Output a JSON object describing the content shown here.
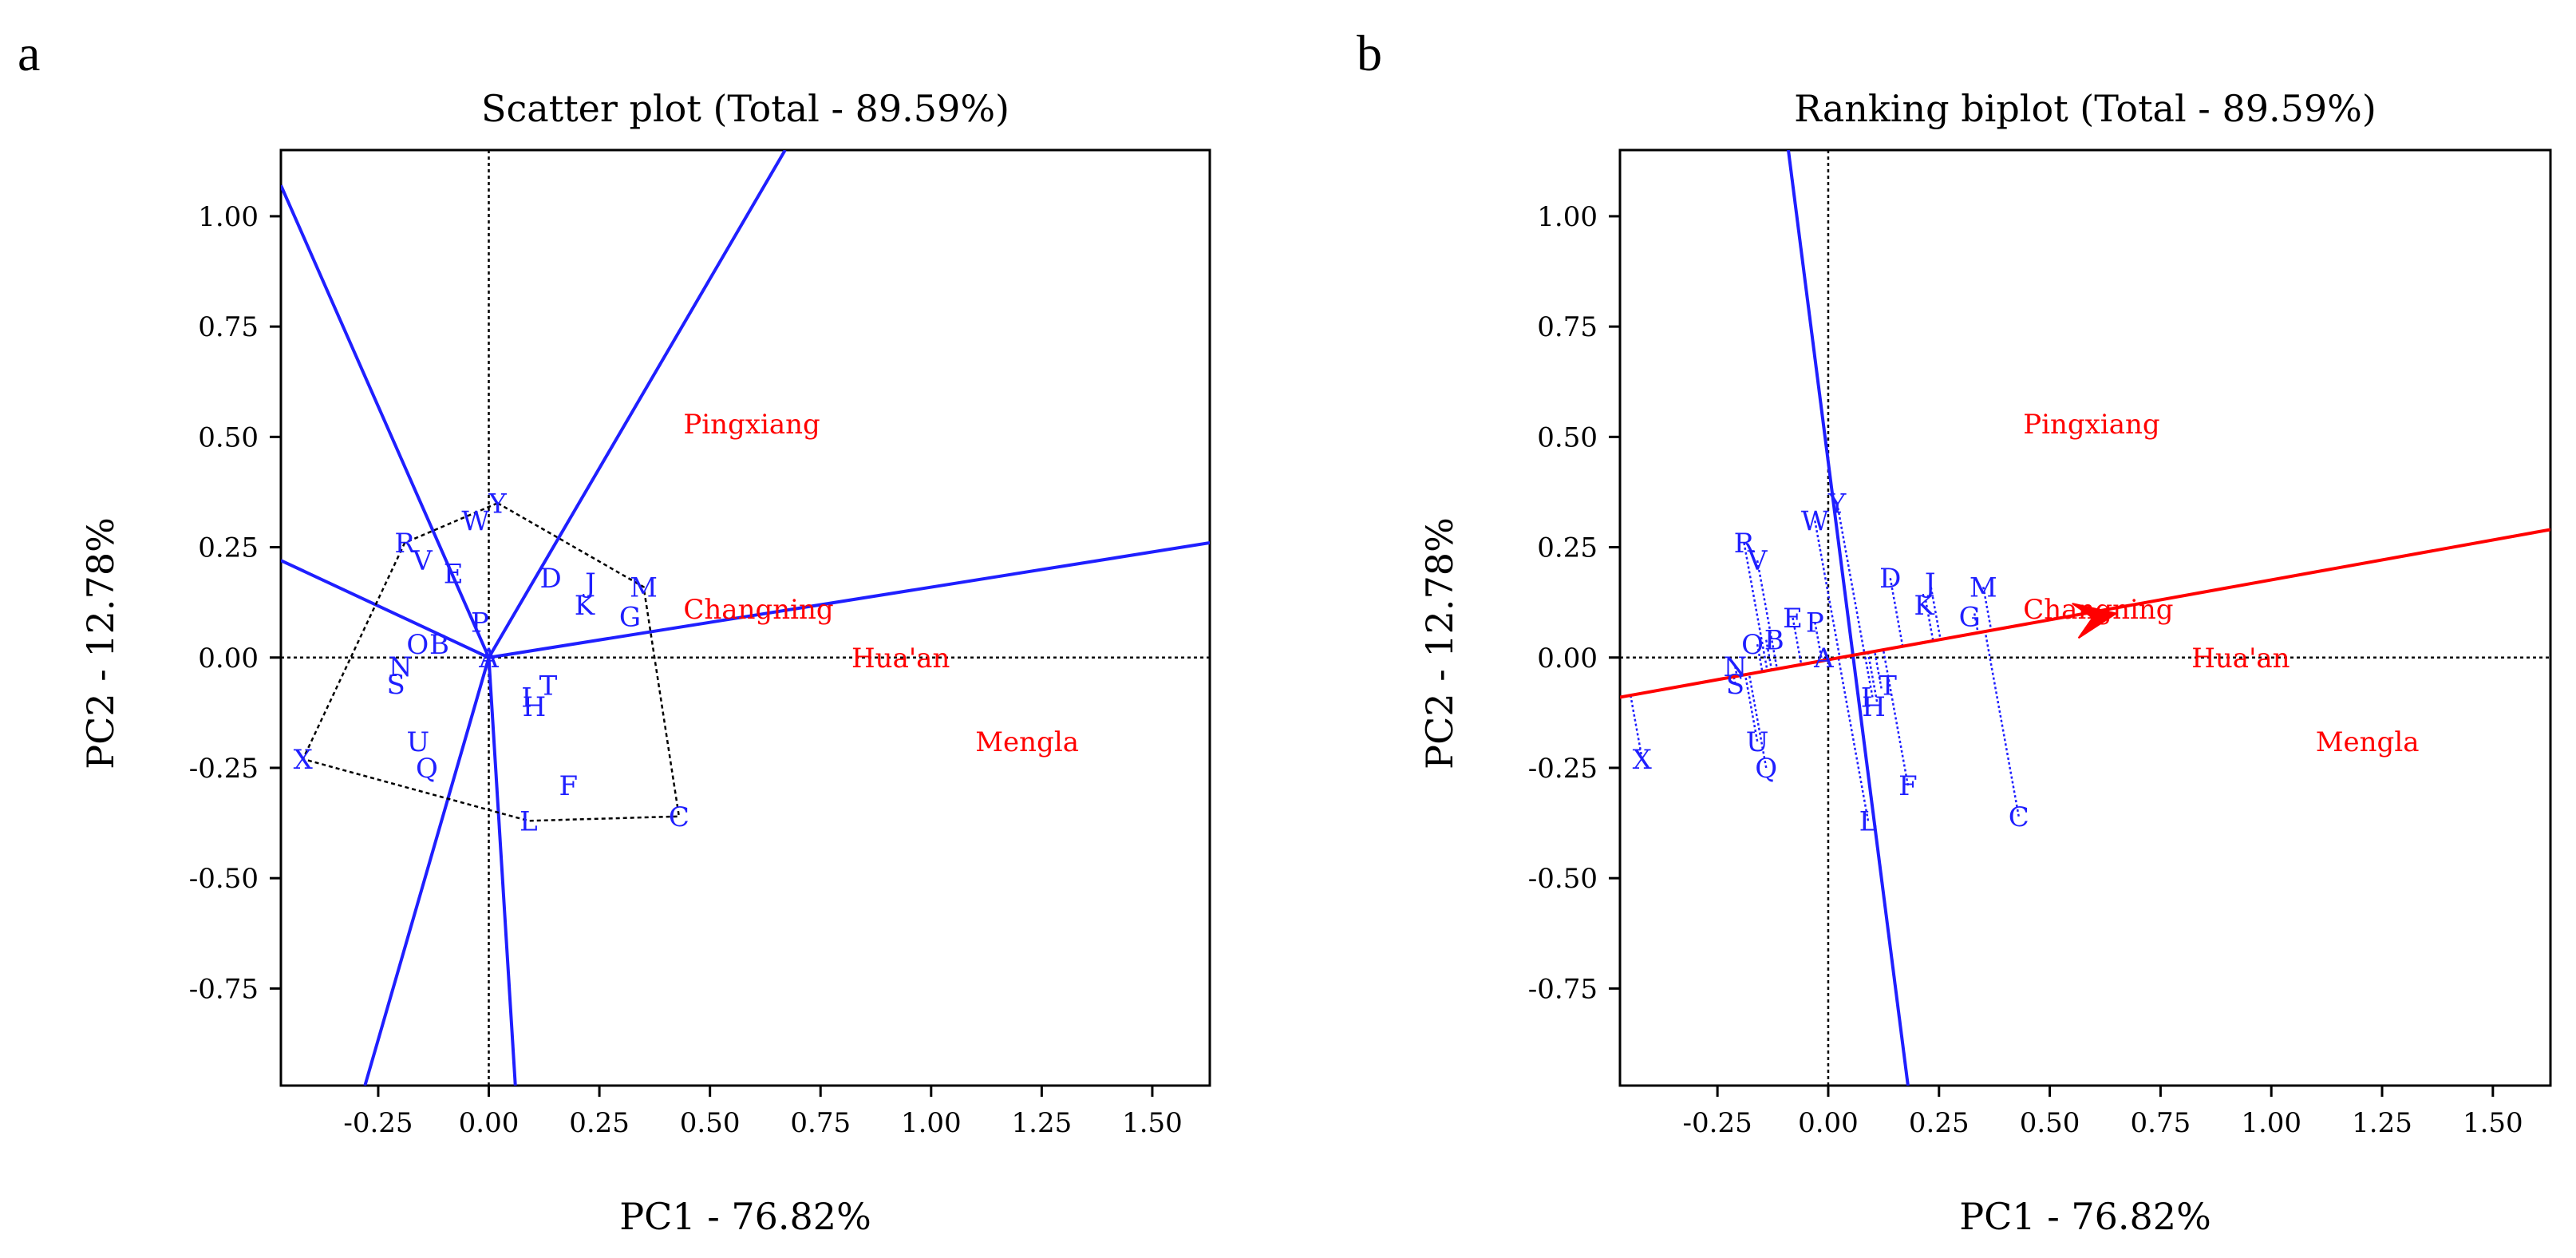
{
  "chart_data": [
    {
      "panel": "a",
      "type": "scatter",
      "title": "Scatter plot (Total - 89.59%)",
      "xlabel": "PC1 - 76.82%",
      "ylabel": "PC2 - 12.78%",
      "xlim": [
        -0.47,
        1.63
      ],
      "ylim": [
        -0.97,
        1.15
      ],
      "xticks": [
        -0.25,
        0.0,
        0.25,
        0.5,
        0.75,
        1.0,
        1.25,
        1.5
      ],
      "xtick_labels": [
        "-0.25",
        "0.00",
        "0.25",
        "0.50",
        "0.75",
        "1.00",
        "1.25",
        "1.50"
      ],
      "yticks": [
        1.0,
        0.75,
        0.5,
        0.25,
        0.0,
        -0.25,
        -0.5,
        -0.75
      ],
      "ytick_labels": [
        "1.00",
        "0.75",
        "0.50",
        "0.25",
        "0.00",
        "-0.25",
        "-0.50",
        "-0.75"
      ],
      "genotypes": [
        {
          "label": "Y",
          "x": 0.02,
          "y": 0.35
        },
        {
          "label": "W",
          "x": -0.03,
          "y": 0.31
        },
        {
          "label": "R",
          "x": -0.19,
          "y": 0.26
        },
        {
          "label": "V",
          "x": -0.15,
          "y": 0.22
        },
        {
          "label": "D",
          "x": 0.14,
          "y": 0.18
        },
        {
          "label": "J",
          "x": 0.23,
          "y": 0.17
        },
        {
          "label": "K",
          "x": 0.22,
          "y": 0.13
        },
        {
          "label": "M",
          "x": 0.35,
          "y": 0.16
        },
        {
          "label": "G",
          "x": 0.33,
          "y": 0.1
        },
        {
          "label": "E",
          "x": -0.08,
          "y": 0.19
        },
        {
          "label": "P",
          "x": -0.02,
          "y": 0.08
        },
        {
          "label": "O",
          "x": -0.15,
          "y": 0.03
        },
        {
          "label": "B",
          "x": -0.13,
          "y": 0.03
        },
        {
          "label": "N",
          "x": -0.2,
          "y": -0.02
        },
        {
          "label": "S",
          "x": -0.21,
          "y": -0.06
        },
        {
          "label": "A",
          "x": 0.0,
          "y": 0.0
        },
        {
          "label": "T",
          "x": 0.12,
          "y": -0.07
        },
        {
          "label": "I",
          "x": 0.1,
          "y": -0.09
        },
        {
          "label": "H",
          "x": 0.11,
          "y": -0.1
        },
        {
          "label": "U",
          "x": -0.16,
          "y": -0.19
        },
        {
          "label": "Q",
          "x": -0.14,
          "y": -0.25
        },
        {
          "label": "X",
          "x": -0.42,
          "y": -0.23
        },
        {
          "label": "F",
          "x": 0.18,
          "y": -0.29
        },
        {
          "label": "L",
          "x": 0.09,
          "y": -0.37
        },
        {
          "label": "C",
          "x": 0.43,
          "y": -0.36
        }
      ],
      "environments": [
        {
          "label": "Pingxiang",
          "x": 0.44,
          "y": 0.53
        },
        {
          "label": "Changning",
          "x": 0.44,
          "y": 0.11
        },
        {
          "label": "Hua'an",
          "x": 0.82,
          "y": 0.0
        },
        {
          "label": "Mengla",
          "x": 1.1,
          "y": -0.19
        }
      ],
      "hull_vertices": [
        "Y",
        "M",
        "C",
        "L",
        "X",
        "R"
      ],
      "sector_rays": [
        {
          "from": [
            0,
            0
          ],
          "to": [
            0.67,
            1.15
          ]
        },
        {
          "from": [
            0,
            0
          ],
          "to": [
            1.63,
            0.26
          ]
        },
        {
          "from": [
            0,
            0
          ],
          "to": [
            0.06,
            -0.97
          ]
        },
        {
          "from": [
            0,
            0
          ],
          "to": [
            -0.28,
            -0.97
          ]
        },
        {
          "from": [
            0,
            0
          ],
          "to": [
            -0.47,
            0.22
          ]
        },
        {
          "from": [
            0,
            0
          ],
          "to": [
            -0.47,
            1.07
          ]
        }
      ]
    },
    {
      "panel": "b",
      "type": "scatter",
      "title": "Ranking biplot (Total - 89.59%)",
      "xlabel": "PC1 - 76.82%",
      "ylabel": "PC2 - 12.78%",
      "xlim": [
        -0.47,
        1.63
      ],
      "ylim": [
        -0.97,
        1.15
      ],
      "xticks": [
        -0.25,
        0.0,
        0.25,
        0.5,
        0.75,
        1.0,
        1.25,
        1.5
      ],
      "xtick_labels": [
        "-0.25",
        "0.00",
        "0.25",
        "0.50",
        "0.75",
        "1.00",
        "1.25",
        "1.50"
      ],
      "yticks": [
        1.0,
        0.75,
        0.5,
        0.25,
        0.0,
        -0.25,
        -0.5,
        -0.75
      ],
      "ytick_labels": [
        "1.00",
        "0.75",
        "0.50",
        "0.25",
        "0.00",
        "-0.25",
        "-0.50",
        "-0.75"
      ],
      "genotypes": [
        {
          "label": "Y",
          "x": 0.02,
          "y": 0.35
        },
        {
          "label": "W",
          "x": -0.03,
          "y": 0.31
        },
        {
          "label": "R",
          "x": -0.19,
          "y": 0.26
        },
        {
          "label": "V",
          "x": -0.16,
          "y": 0.22
        },
        {
          "label": "D",
          "x": 0.14,
          "y": 0.18
        },
        {
          "label": "J",
          "x": 0.23,
          "y": 0.17
        },
        {
          "label": "K",
          "x": 0.22,
          "y": 0.13
        },
        {
          "label": "M",
          "x": 0.35,
          "y": 0.16
        },
        {
          "label": "G",
          "x": 0.33,
          "y": 0.1
        },
        {
          "label": "E",
          "x": -0.08,
          "y": 0.09
        },
        {
          "label": "P",
          "x": -0.03,
          "y": 0.08
        },
        {
          "label": "B",
          "x": -0.14,
          "y": 0.04
        },
        {
          "label": "O",
          "x": -0.16,
          "y": 0.03
        },
        {
          "label": "A",
          "x": -0.01,
          "y": 0.0
        },
        {
          "label": "N",
          "x": -0.21,
          "y": -0.02
        },
        {
          "label": "S",
          "x": -0.21,
          "y": -0.06
        },
        {
          "label": "T",
          "x": 0.12,
          "y": -0.07
        },
        {
          "label": "I",
          "x": 0.1,
          "y": -0.09
        },
        {
          "label": "H",
          "x": 0.11,
          "y": -0.1
        },
        {
          "label": "U",
          "x": -0.16,
          "y": -0.19
        },
        {
          "label": "Q",
          "x": -0.14,
          "y": -0.25
        },
        {
          "label": "X",
          "x": -0.42,
          "y": -0.23
        },
        {
          "label": "F",
          "x": 0.18,
          "y": -0.29
        },
        {
          "label": "L",
          "x": 0.09,
          "y": -0.37
        },
        {
          "label": "C",
          "x": 0.43,
          "y": -0.36
        }
      ],
      "environments": [
        {
          "label": "Pingxiang",
          "x": 0.44,
          "y": 0.53
        },
        {
          "label": "Changning",
          "x": 0.44,
          "y": 0.11
        },
        {
          "label": "Hua'an",
          "x": 0.82,
          "y": 0.0
        },
        {
          "label": "Mengla",
          "x": 1.1,
          "y": -0.19
        }
      ],
      "aec_abscissa": {
        "from": [
          -0.47,
          -0.09
        ],
        "to": [
          1.63,
          0.29
        ],
        "arrow_tip": [
          0.65,
          0.1
        ]
      },
      "aec_ordinate": {
        "from": [
          -0.09,
          1.15
        ],
        "to": [
          0.18,
          -0.97
        ]
      }
    }
  ]
}
